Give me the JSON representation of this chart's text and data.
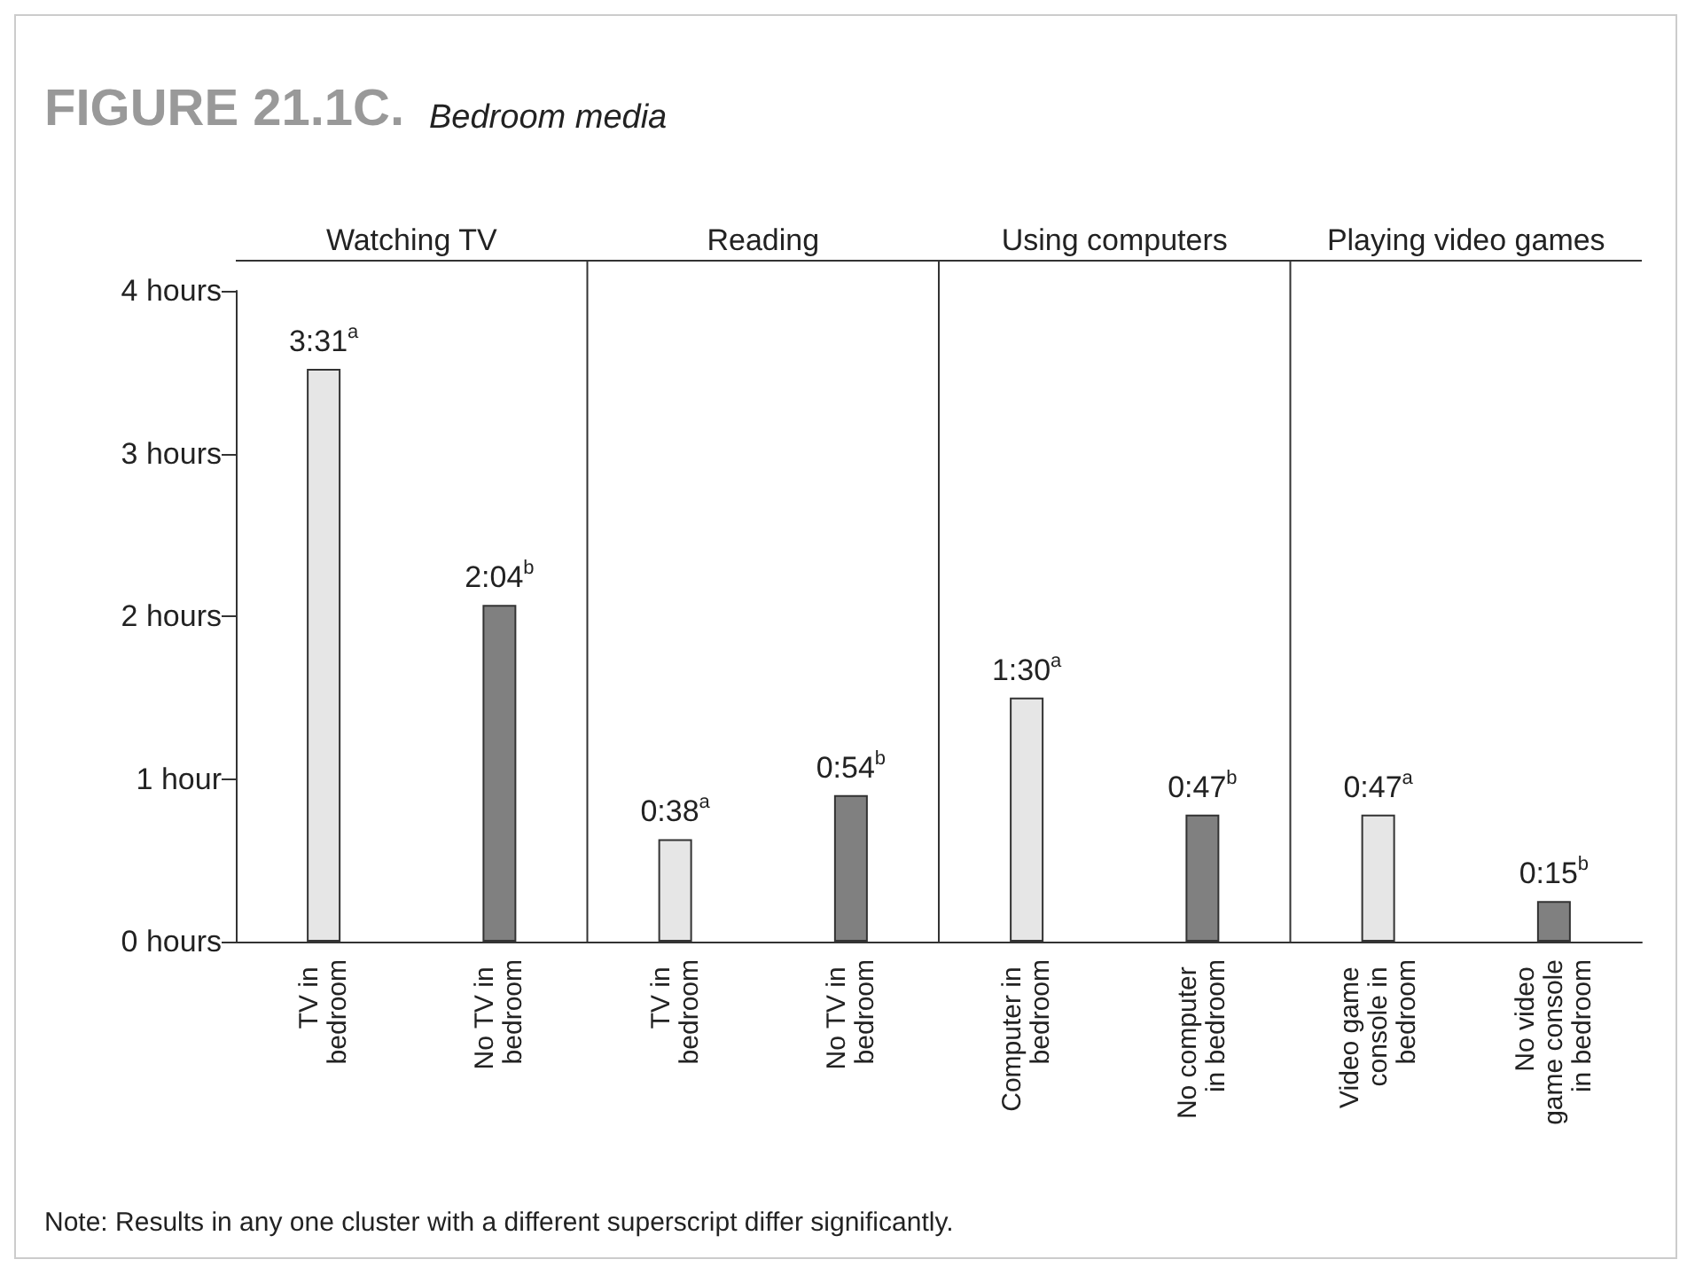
{
  "chart_data": {
    "type": "bar",
    "title": "FIGURE 21.1C.",
    "subtitle": "Bedroom media",
    "categories": [
      "TV in bedroom",
      "No TV in bedroom",
      "TV in bedroom",
      "No TV in bedroom",
      "Computer in bedroom",
      "No computer in bedroom",
      "Video game console in bedroom",
      "No video game console in bedroom"
    ],
    "values": [
      3.52,
      2.07,
      0.63,
      0.9,
      1.5,
      0.78,
      0.78,
      0.25
    ],
    "colors": [
      "#e6e6e6",
      "#808080",
      "#e6e6e6",
      "#808080",
      "#e6e6e6",
      "#808080",
      "#e6e6e6",
      "#808080"
    ],
    "value_labels": [
      "3:31$^{a}$",
      "2:04$^{b}$",
      "0:38$^{a}$",
      "0:54$^{b}$",
      "1:30$^{a}$",
      "0:47$^{b}$",
      "0:47$^{a}$",
      "0:15$^{b}$"
    ],
    "ylim": [
      0,
      4
    ],
    "yticks": [
      {
        "value": 0,
        "label": "0 hours"
      },
      {
        "value": 1,
        "label": "1 hour"
      },
      {
        "value": 2,
        "label": "2 hours"
      },
      {
        "value": 3,
        "label": "3 hours"
      },
      {
        "value": 4,
        "label": "4 hours"
      }
    ],
    "annotations": [
      "Watching TV",
      "Reading",
      "Using computers",
      "Playing video games",
      "Note: Results in any one cluster with a different superscript differ significantly."
    ]
  }
}
